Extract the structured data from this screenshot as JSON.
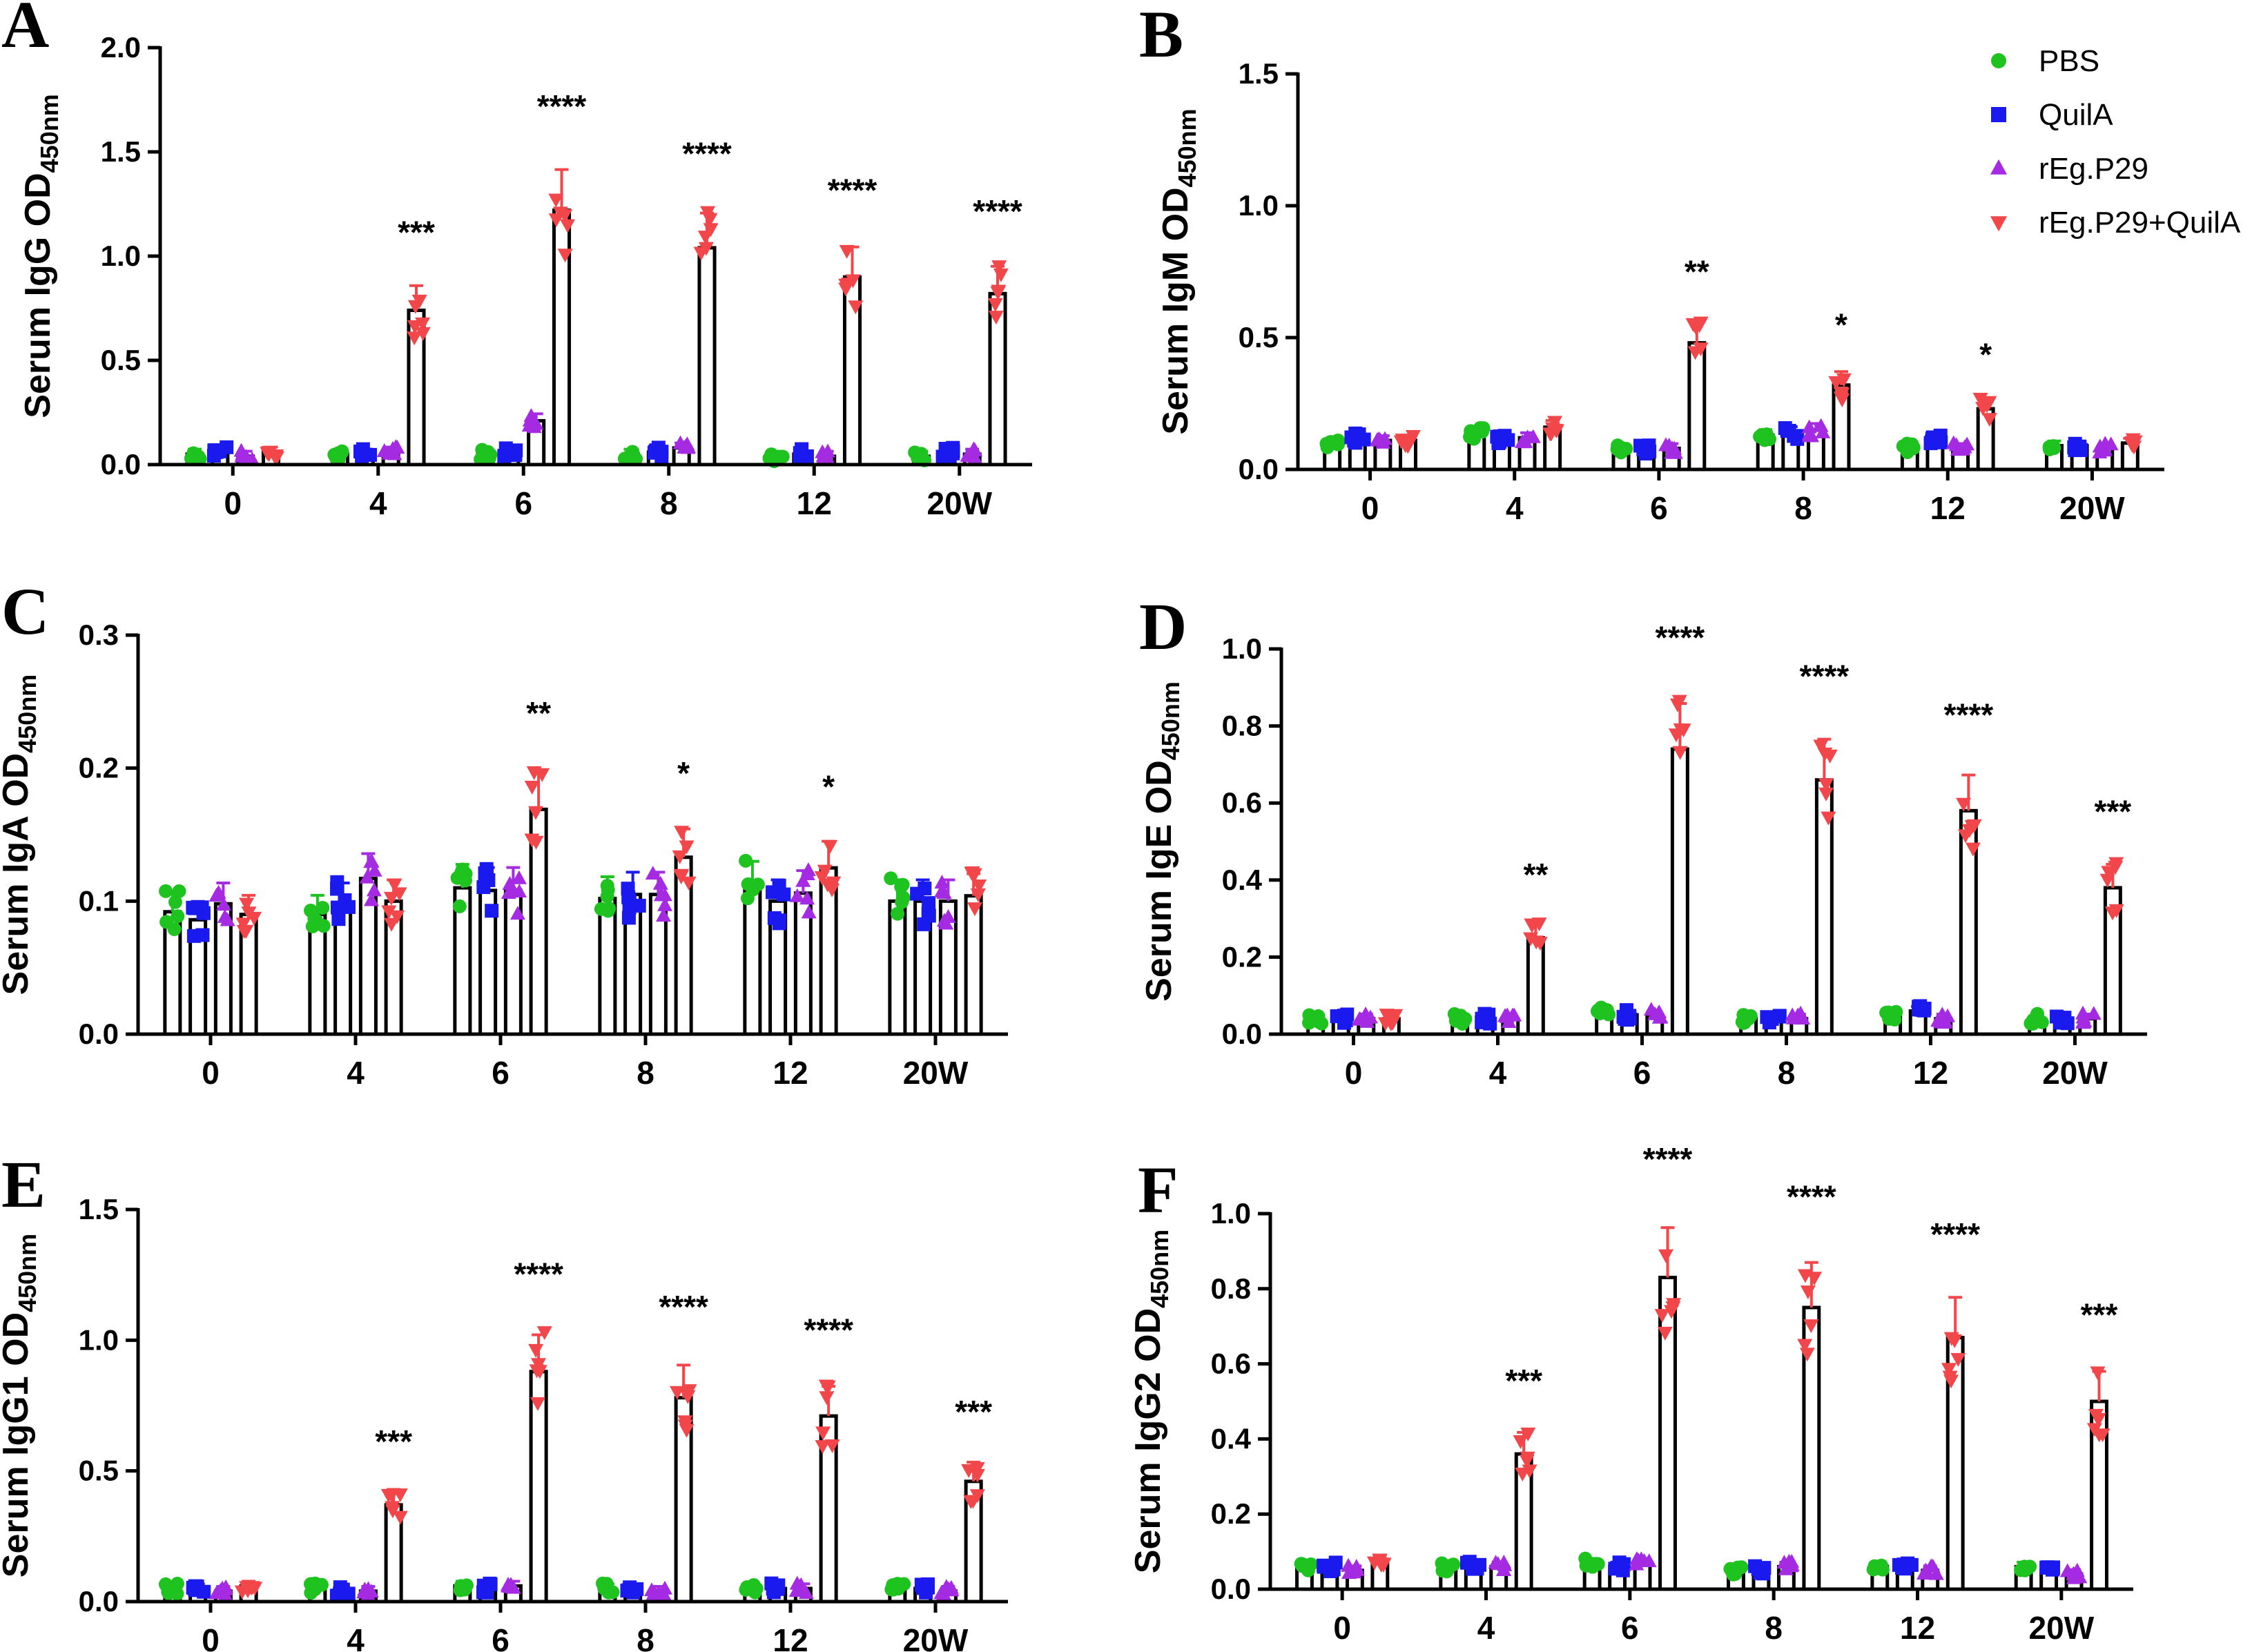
{
  "legend": [
    {
      "name": "PBS",
      "color": "#1fc31f",
      "marker": "circle"
    },
    {
      "name": "QuilA",
      "color": "#1a1aef",
      "marker": "square"
    },
    {
      "name": "rEg.P29",
      "color": "#a52be2",
      "marker": "triangle-up"
    },
    {
      "name": "rEg.P29+QuilA",
      "color": "#f2474a",
      "marker": "triangle-down"
    }
  ],
  "chart_data": [
    {
      "panel": "A",
      "type": "bar",
      "ylabel": "Serum IgG OD",
      "ylabel_sub": "450nm",
      "categories": [
        "0",
        "4",
        "6",
        "8",
        "12",
        "20W"
      ],
      "ylim": [
        0,
        2.0
      ],
      "yticks": [
        "0.0",
        "0.5",
        "1.0",
        "1.5",
        "2.0"
      ],
      "series": [
        {
          "name": "PBS",
          "values": [
            0.05,
            0.05,
            0.05,
            0.05,
            0.04,
            0.04
          ]
        },
        {
          "name": "QuilA",
          "values": [
            0.06,
            0.05,
            0.06,
            0.06,
            0.05,
            0.06
          ]
        },
        {
          "name": "rEg.P29",
          "values": [
            0.04,
            0.06,
            0.21,
            0.08,
            0.04,
            0.05
          ]
        },
        {
          "name": "rEg.P29+QuilA",
          "values": [
            0.06,
            0.74,
            1.22,
            1.04,
            0.9,
            0.82
          ]
        }
      ],
      "significance": [
        "",
        "***",
        "****",
        "****",
        "****",
        "****"
      ]
    },
    {
      "panel": "B",
      "type": "bar",
      "ylabel": "Serum IgM OD",
      "ylabel_sub": "450nm",
      "categories": [
        "0",
        "4",
        "6",
        "8",
        "12",
        "20W"
      ],
      "ylim": [
        0,
        1.5
      ],
      "yticks": [
        "0.0",
        "0.5",
        "1.0",
        "1.5"
      ],
      "series": [
        {
          "name": "PBS",
          "values": [
            0.1,
            0.14,
            0.08,
            0.13,
            0.08,
            0.09
          ]
        },
        {
          "name": "QuilA",
          "values": [
            0.12,
            0.12,
            0.08,
            0.14,
            0.11,
            0.09
          ]
        },
        {
          "name": "rEg.P29",
          "values": [
            0.11,
            0.12,
            0.08,
            0.15,
            0.08,
            0.08
          ]
        },
        {
          "name": "rEg.P29+QuilA",
          "values": [
            0.11,
            0.16,
            0.48,
            0.32,
            0.23,
            0.1
          ]
        }
      ],
      "significance": [
        "",
        "",
        "**",
        "*",
        "*",
        ""
      ]
    },
    {
      "panel": "C",
      "type": "bar",
      "ylabel": "Serum IgA OD",
      "ylabel_sub": "450nm",
      "categories": [
        "0",
        "4",
        "6",
        "8",
        "12",
        "20W"
      ],
      "ylim": [
        0,
        0.3
      ],
      "yticks": [
        "0.0",
        "0.1",
        "0.2",
        "0.3"
      ],
      "series": [
        {
          "name": "PBS",
          "values": [
            0.092,
            0.09,
            0.11,
            0.102,
            0.112,
            0.1
          ]
        },
        {
          "name": "QuilA",
          "values": [
            0.086,
            0.098,
            0.108,
            0.105,
            0.1,
            0.1
          ]
        },
        {
          "name": "rEg.P29",
          "values": [
            0.098,
            0.117,
            0.108,
            0.105,
            0.106,
            0.1
          ]
        },
        {
          "name": "rEg.P29+QuilA",
          "values": [
            0.09,
            0.1,
            0.169,
            0.133,
            0.125,
            0.104
          ]
        }
      ],
      "significance": [
        "",
        "",
        "**",
        "*",
        "*",
        ""
      ]
    },
    {
      "panel": "D",
      "type": "bar",
      "ylabel": "Serum IgE OD",
      "ylabel_sub": "450nm",
      "categories": [
        "0",
        "4",
        "6",
        "8",
        "12",
        "20W"
      ],
      "ylim": [
        0,
        1.0
      ],
      "yticks": [
        "0.0",
        "0.2",
        "0.4",
        "0.6",
        "0.8",
        "1.0"
      ],
      "series": [
        {
          "name": "PBS",
          "values": [
            0.04,
            0.04,
            0.06,
            0.04,
            0.05,
            0.04
          ]
        },
        {
          "name": "QuilA",
          "values": [
            0.04,
            0.04,
            0.05,
            0.04,
            0.06,
            0.04
          ]
        },
        {
          "name": "rEg.P29",
          "values": [
            0.04,
            0.04,
            0.05,
            0.04,
            0.04,
            0.04
          ]
        },
        {
          "name": "rEg.P29+QuilA",
          "values": [
            0.04,
            0.25,
            0.74,
            0.66,
            0.58,
            0.38
          ]
        }
      ],
      "significance": [
        "",
        "**",
        "****",
        "****",
        "****",
        "***"
      ]
    },
    {
      "panel": "E",
      "type": "bar",
      "ylabel": "Serum IgG1 OD",
      "ylabel_sub": "450nm",
      "categories": [
        "0",
        "4",
        "6",
        "8",
        "12",
        "20W"
      ],
      "ylim": [
        0,
        1.5
      ],
      "yticks": [
        "0.0",
        "0.5",
        "1.0",
        "1.5"
      ],
      "series": [
        {
          "name": "PBS",
          "values": [
            0.05,
            0.05,
            0.06,
            0.05,
            0.05,
            0.05
          ]
        },
        {
          "name": "QuilA",
          "values": [
            0.05,
            0.04,
            0.05,
            0.04,
            0.05,
            0.05
          ]
        },
        {
          "name": "rEg.P29",
          "values": [
            0.04,
            0.04,
            0.06,
            0.04,
            0.05,
            0.04
          ]
        },
        {
          "name": "rEg.P29+QuilA",
          "values": [
            0.06,
            0.37,
            0.88,
            0.78,
            0.71,
            0.46
          ]
        }
      ],
      "significance": [
        "",
        "***",
        "****",
        "****",
        "****",
        "***"
      ]
    },
    {
      "panel": "F",
      "type": "bar",
      "ylabel": "Serum IgG2 OD",
      "ylabel_sub": "450nm",
      "categories": [
        "0",
        "4",
        "6",
        "8",
        "12",
        "20W"
      ],
      "ylim": [
        0,
        1.0
      ],
      "yticks": [
        "0.0",
        "0.2",
        "0.4",
        "0.6",
        "0.8",
        "1.0"
      ],
      "series": [
        {
          "name": "PBS",
          "values": [
            0.06,
            0.06,
            0.07,
            0.05,
            0.06,
            0.06
          ]
        },
        {
          "name": "QuilA",
          "values": [
            0.06,
            0.06,
            0.06,
            0.05,
            0.06,
            0.05
          ]
        },
        {
          "name": "rEg.P29",
          "values": [
            0.05,
            0.06,
            0.07,
            0.06,
            0.05,
            0.04
          ]
        },
        {
          "name": "rEg.P29+QuilA",
          "values": [
            0.07,
            0.36,
            0.83,
            0.75,
            0.67,
            0.5
          ]
        }
      ],
      "significance": [
        "",
        "***",
        "****",
        "****",
        "****",
        "***"
      ]
    }
  ]
}
